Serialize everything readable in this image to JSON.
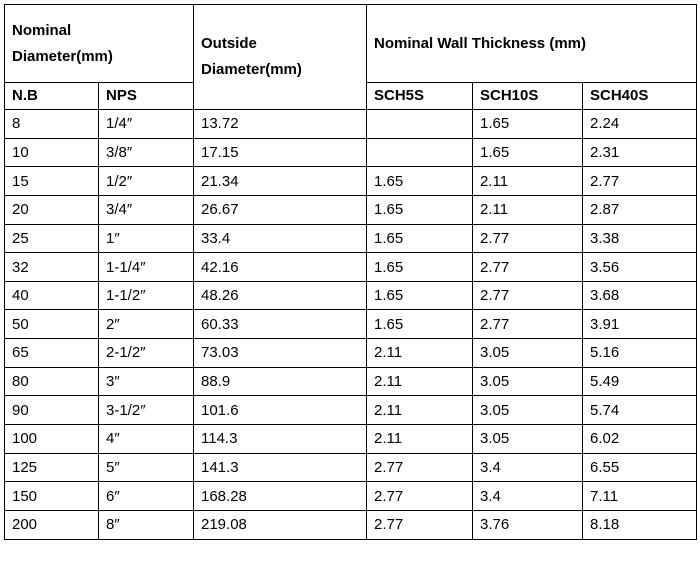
{
  "table": {
    "header": {
      "group_nominal": "Nominal Diameter(mm)",
      "outside": "Outside Diameter(mm)",
      "group_wall": "Nominal Wall Thickness (mm)",
      "columns": [
        "N.B",
        "NPS",
        "SCH5S",
        "SCH10S",
        "SCH40S"
      ]
    },
    "rows": [
      [
        "8",
        "1/4″",
        "13.72",
        null,
        "1.65",
        "2.24"
      ],
      [
        "10",
        "3/8″",
        "17.15",
        null,
        "1.65",
        "2.31"
      ],
      [
        "15",
        "1/2″",
        "21.34",
        "1.65",
        "2.11",
        "2.77"
      ],
      [
        "20",
        "3/4″",
        "26.67",
        "1.65",
        "2.11",
        "2.87"
      ],
      [
        "25",
        "1″",
        "33.4",
        "1.65",
        "2.77",
        "3.38"
      ],
      [
        "32",
        "1-1/4″",
        "42.16",
        "1.65",
        "2.77",
        "3.56"
      ],
      [
        "40",
        "1-1/2″",
        "48.26",
        "1.65",
        "2.77",
        "3.68"
      ],
      [
        "50",
        "2″",
        "60.33",
        "1.65",
        "2.77",
        "3.91"
      ],
      [
        "65",
        "2-1/2″",
        "73.03",
        "2.11",
        "3.05",
        "5.16"
      ],
      [
        "80",
        "3″",
        "88.9",
        "2.11",
        "3.05",
        "5.49"
      ],
      [
        "90",
        "3-1/2″",
        "101.6",
        "2.11",
        "3.05",
        "5.74"
      ],
      [
        "100",
        "4″",
        "114.3",
        "2.11",
        "3.05",
        "6.02"
      ],
      [
        "125",
        "5″",
        "141.3",
        "2.77",
        "3.4",
        "6.55"
      ],
      [
        "150",
        "6″",
        "168.28",
        "2.77",
        "3.4",
        "7.11"
      ],
      [
        "200",
        "8″",
        "219.08",
        "2.77",
        "3.76",
        "8.18"
      ]
    ]
  }
}
